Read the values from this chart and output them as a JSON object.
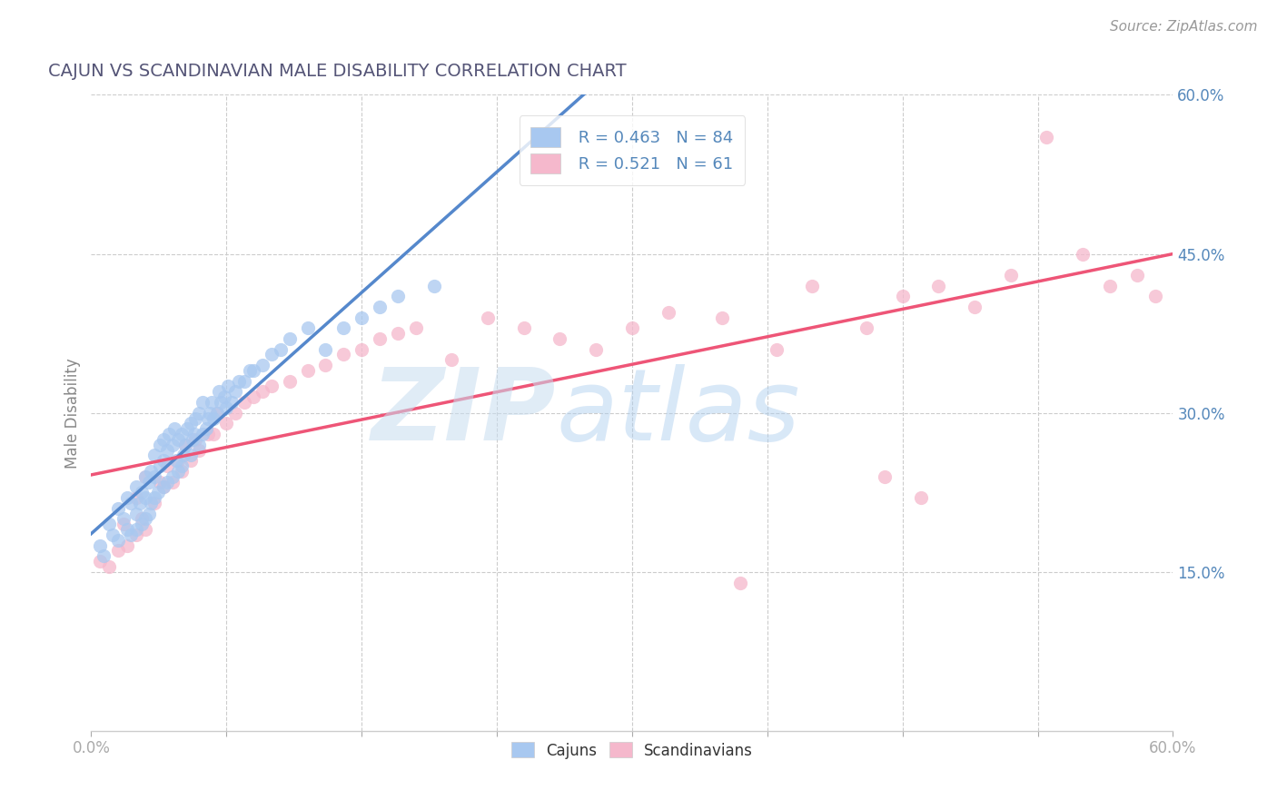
{
  "title": "CAJUN VS SCANDINAVIAN MALE DISABILITY CORRELATION CHART",
  "source": "Source: ZipAtlas.com",
  "xlabel_cajuns": "Cajuns",
  "xlabel_scandinavians": "Scandinavians",
  "ylabel": "Male Disability",
  "xlim": [
    0.0,
    0.6
  ],
  "ylim": [
    0.0,
    0.6
  ],
  "xtick_positions": [
    0.0,
    0.075,
    0.15,
    0.225,
    0.3,
    0.375,
    0.45,
    0.525,
    0.6
  ],
  "xtick_labels_show": {
    "0.0": "0.0%",
    "0.60": "60.0%"
  },
  "yticks_right": [
    0.15,
    0.3,
    0.45,
    0.6
  ],
  "grid_color": "#cccccc",
  "background_color": "#ffffff",
  "cajun_color": "#a8c8f0",
  "scandinavian_color": "#f5b8cc",
  "cajun_line_color": "#5588cc",
  "scandinavian_line_color": "#ee5577",
  "R_cajun": 0.463,
  "N_cajun": 84,
  "R_scandinavian": 0.521,
  "N_scandinavian": 61,
  "title_color": "#555577",
  "tick_color": "#5588bb",
  "source_color": "#999999",
  "watermark": "ZIPatlas",
  "watermark_color_zip": "#aaccee",
  "watermark_color_atlas": "#88aacc",
  "cajun_x": [
    0.005,
    0.007,
    0.01,
    0.012,
    0.015,
    0.015,
    0.018,
    0.02,
    0.02,
    0.022,
    0.022,
    0.025,
    0.025,
    0.025,
    0.027,
    0.028,
    0.028,
    0.03,
    0.03,
    0.03,
    0.032,
    0.032,
    0.033,
    0.033,
    0.035,
    0.035,
    0.035,
    0.037,
    0.038,
    0.038,
    0.04,
    0.04,
    0.04,
    0.042,
    0.042,
    0.043,
    0.045,
    0.045,
    0.046,
    0.047,
    0.048,
    0.048,
    0.05,
    0.05,
    0.051,
    0.052,
    0.053,
    0.055,
    0.055,
    0.056,
    0.057,
    0.058,
    0.06,
    0.06,
    0.062,
    0.062,
    0.064,
    0.065,
    0.066,
    0.067,
    0.068,
    0.07,
    0.071,
    0.072,
    0.074,
    0.075,
    0.076,
    0.078,
    0.08,
    0.082,
    0.085,
    0.088,
    0.09,
    0.095,
    0.1,
    0.105,
    0.11,
    0.12,
    0.13,
    0.14,
    0.15,
    0.16,
    0.17,
    0.19
  ],
  "cajun_y": [
    0.175,
    0.165,
    0.195,
    0.185,
    0.18,
    0.21,
    0.2,
    0.19,
    0.22,
    0.185,
    0.215,
    0.19,
    0.205,
    0.23,
    0.215,
    0.195,
    0.225,
    0.2,
    0.22,
    0.24,
    0.205,
    0.235,
    0.215,
    0.245,
    0.22,
    0.24,
    0.26,
    0.225,
    0.25,
    0.27,
    0.23,
    0.255,
    0.275,
    0.235,
    0.265,
    0.28,
    0.24,
    0.27,
    0.285,
    0.255,
    0.245,
    0.275,
    0.25,
    0.28,
    0.26,
    0.27,
    0.285,
    0.26,
    0.29,
    0.275,
    0.28,
    0.295,
    0.27,
    0.3,
    0.28,
    0.31,
    0.285,
    0.295,
    0.3,
    0.31,
    0.295,
    0.3,
    0.32,
    0.31,
    0.315,
    0.305,
    0.325,
    0.31,
    0.32,
    0.33,
    0.33,
    0.34,
    0.34,
    0.345,
    0.355,
    0.36,
    0.37,
    0.38,
    0.36,
    0.38,
    0.39,
    0.4,
    0.41,
    0.42
  ],
  "scandinavian_x": [
    0.005,
    0.01,
    0.015,
    0.018,
    0.02,
    0.025,
    0.025,
    0.028,
    0.03,
    0.03,
    0.035,
    0.038,
    0.04,
    0.042,
    0.045,
    0.048,
    0.05,
    0.052,
    0.055,
    0.058,
    0.06,
    0.065,
    0.068,
    0.07,
    0.075,
    0.08,
    0.085,
    0.09,
    0.095,
    0.1,
    0.11,
    0.12,
    0.13,
    0.14,
    0.15,
    0.16,
    0.17,
    0.18,
    0.2,
    0.22,
    0.24,
    0.26,
    0.28,
    0.3,
    0.32,
    0.35,
    0.38,
    0.4,
    0.43,
    0.45,
    0.47,
    0.49,
    0.51,
    0.53,
    0.55,
    0.565,
    0.58,
    0.59,
    0.44,
    0.46,
    0.36
  ],
  "scandinavian_y": [
    0.16,
    0.155,
    0.17,
    0.195,
    0.175,
    0.185,
    0.22,
    0.2,
    0.19,
    0.24,
    0.215,
    0.235,
    0.23,
    0.25,
    0.235,
    0.255,
    0.245,
    0.27,
    0.255,
    0.275,
    0.265,
    0.28,
    0.28,
    0.3,
    0.29,
    0.3,
    0.31,
    0.315,
    0.32,
    0.325,
    0.33,
    0.34,
    0.345,
    0.355,
    0.36,
    0.37,
    0.375,
    0.38,
    0.35,
    0.39,
    0.38,
    0.37,
    0.36,
    0.38,
    0.395,
    0.39,
    0.36,
    0.42,
    0.38,
    0.41,
    0.42,
    0.4,
    0.43,
    0.56,
    0.45,
    0.42,
    0.43,
    0.41,
    0.24,
    0.22,
    0.14
  ]
}
